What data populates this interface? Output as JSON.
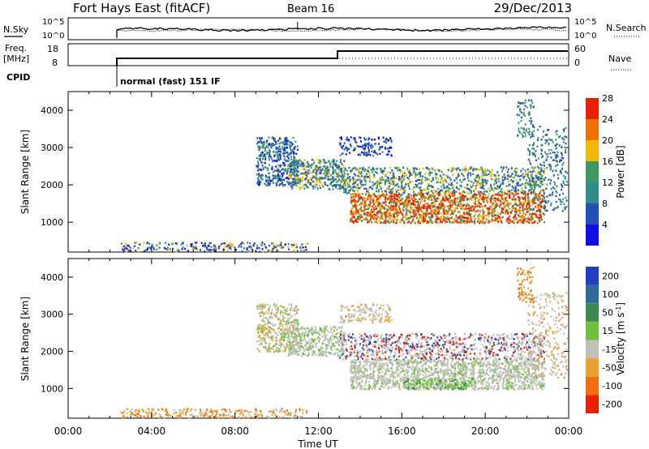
{
  "header": {
    "title": "Fort Hays East (fitACF)",
    "beam": "Beam 16",
    "date": "29/Dec/2013"
  },
  "noise_panel": {
    "left_label": "N.Sky",
    "right_label": "N.Search",
    "left_ticks": [
      "10^5",
      "10^0"
    ],
    "right_ticks": [
      "10^5",
      "10^0"
    ],
    "start_time": "02:00"
  },
  "freq_panel": {
    "left_label_1": "Freq.",
    "left_label_2": "[MHz]",
    "right_label": "Nave",
    "left_ticks": [
      "18",
      "8"
    ],
    "right_ticks": [
      "60",
      "0"
    ]
  },
  "cpid_panel": {
    "label": "CPID",
    "mode": "normal (fast) 151 IF"
  },
  "chart_data": [
    {
      "type": "heatmap",
      "name": "power",
      "ylabel": "Slant Range [km]",
      "ylim": [
        200,
        4500
      ],
      "yticks": [
        "1000",
        "2000",
        "3000",
        "4000"
      ],
      "xlim_hours": [
        0,
        24
      ],
      "colorbar_label": "Power [dB]",
      "colorbar_ticks": [
        "4",
        "8",
        "12",
        "16",
        "20",
        "24",
        "28"
      ],
      "colors": [
        "#1010e0",
        "#2050b8",
        "#308c88",
        "#3c9860",
        "#f0b800",
        "#f07000",
        "#e82000"
      ],
      "features": [
        {
          "time": "09:00-11:00",
          "range_km": [
            2000,
            3300
          ],
          "power": "low"
        },
        {
          "time": "10:30-13:00",
          "range_km": [
            1900,
            2700
          ],
          "power": "low-moderate"
        },
        {
          "time": "13:00-22:30",
          "range_km": [
            1000,
            2000
          ],
          "power": "high"
        },
        {
          "time": "22:00-23:45",
          "range_km": [
            1300,
            4300
          ],
          "power": "low"
        }
      ]
    },
    {
      "type": "heatmap",
      "name": "velocity",
      "ylabel": "Slant Range [km]",
      "ylim": [
        200,
        4500
      ],
      "yticks": [
        "1000",
        "2000",
        "3000",
        "4000"
      ],
      "xlim_hours": [
        0,
        24
      ],
      "colorbar_label": "Velocity [m s^-1]",
      "colorbar_ticks": [
        "200",
        "100",
        "50",
        "15",
        "-15",
        "-50",
        "-100",
        "-200"
      ],
      "colors": [
        "#2040c0",
        "#306a9c",
        "#3c8a50",
        "#70c040",
        "#c0c0b8",
        "#e8a030",
        "#f07010",
        "#e82000"
      ],
      "features": [
        {
          "time": "09:00-23:45",
          "range_km": [
            1000,
            3300
          ],
          "velocity": "near zero (grey)"
        },
        {
          "time": "16:00-19:30",
          "range_km": [
            1000,
            1300
          ],
          "velocity": "positive (green)"
        },
        {
          "time": "03:00-11:00",
          "range_km": [
            200,
            500
          ],
          "velocity": "negative (orange) ground scatter"
        }
      ]
    }
  ],
  "time_axis": {
    "ticks": [
      "00:00",
      "04:00",
      "08:00",
      "12:00",
      "16:00",
      "20:00",
      "00:00"
    ],
    "xlabel": "Time UT"
  }
}
